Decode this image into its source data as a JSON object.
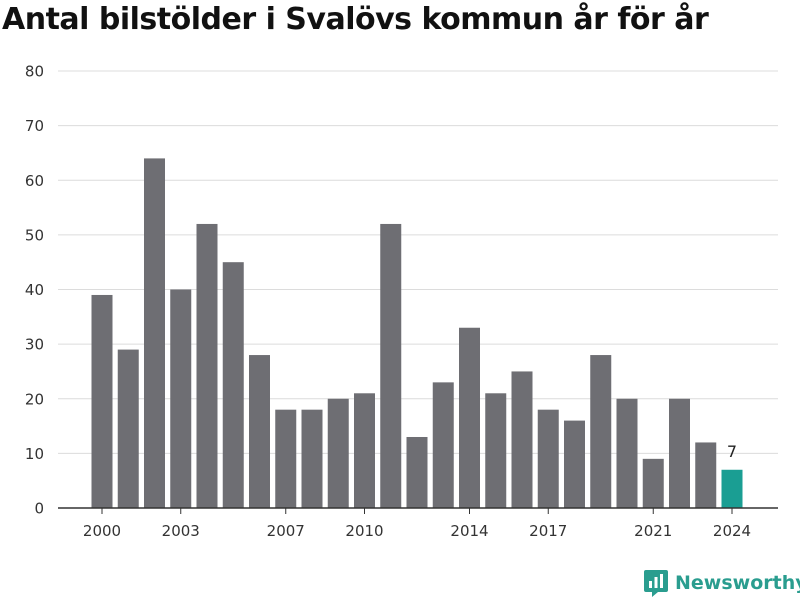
{
  "chart_data": {
    "type": "bar",
    "title": "Antal bilstölder i Svalövs kommun år för år",
    "categories": [
      2000,
      2001,
      2002,
      2003,
      2004,
      2005,
      2006,
      2007,
      2008,
      2009,
      2010,
      2011,
      2012,
      2013,
      2014,
      2015,
      2016,
      2017,
      2018,
      2019,
      2020,
      2021,
      2022,
      2023,
      2024
    ],
    "values": [
      39,
      29,
      64,
      40,
      52,
      45,
      28,
      18,
      18,
      20,
      21,
      52,
      13,
      23,
      33,
      21,
      25,
      18,
      16,
      28,
      20,
      9,
      20,
      12,
      7
    ],
    "x_tick_labels": [
      "2000",
      "2003",
      "2007",
      "2010",
      "2014",
      "2017",
      "2021",
      "2024"
    ],
    "y_ticks": [
      0,
      10,
      20,
      30,
      40,
      50,
      60,
      70,
      80
    ],
    "ylim": [
      0,
      80
    ],
    "grid": true,
    "highlight": {
      "category": 2024,
      "label": "7"
    },
    "colors": {
      "bar": "#6e6e73",
      "highlight": "#1a9e93",
      "grid": "#dcdcdc",
      "axis": "#333333",
      "text": "#333333"
    }
  },
  "branding": {
    "name": "Newsworthy",
    "icon": "newsworthy-logo-icon",
    "color": "#2a9d8f"
  }
}
